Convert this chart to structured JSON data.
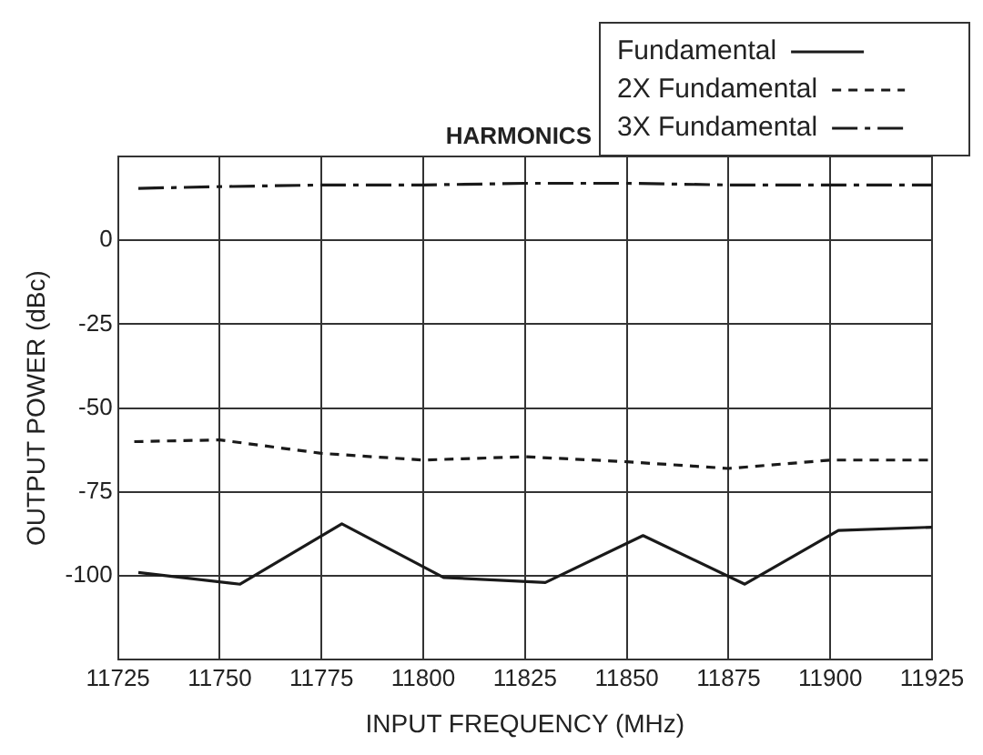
{
  "chart_data": {
    "type": "line",
    "title": "HARMONICS",
    "xlabel": "INPUT FREQUENCY (MHz)",
    "ylabel": "OUTPUT POWER (dBc)",
    "xlim": [
      11725,
      11925
    ],
    "xticks": [
      11725,
      11750,
      11775,
      11800,
      11825,
      11850,
      11875,
      11900,
      11925
    ],
    "ylim": [
      -125,
      25
    ],
    "yticks": [
      {
        "value": -125,
        "label": null
      },
      -100,
      -75,
      -50,
      -25,
      0,
      {
        "value": 25,
        "label": null
      }
    ],
    "grid": true,
    "legend": "top right",
    "marker": "none",
    "series": [
      {
        "name": "Fundamental",
        "color": "#1a1a1a",
        "line_style": "solid",
        "x": [
          11730,
          11755,
          11780,
          11805,
          11830,
          11854,
          11879,
          11902,
          11925
        ],
        "values": [
          -99,
          -102.5,
          -84.5,
          -100.5,
          -102,
          -88,
          -102.5,
          -86.5,
          -85.5
        ]
      },
      {
        "name": "2X Fundamental",
        "color": "#1a1a1a",
        "line_style": "dashed",
        "x": [
          11729,
          11750,
          11775,
          11800,
          11825,
          11850,
          11875,
          11900,
          11925
        ],
        "values": [
          -60,
          -59.5,
          -63.5,
          -65.5,
          -64.5,
          -66,
          -68,
          -65.5,
          -65.5
        ]
      },
      {
        "name": "3X Fundamental",
        "color": "#1a1a1a",
        "line_style": "dashdot",
        "x": [
          11730,
          11750,
          11775,
          11800,
          11825,
          11850,
          11875,
          11900,
          11925
        ],
        "values": [
          15.5,
          16,
          16.5,
          16.5,
          17,
          17,
          16.5,
          16.5,
          16.5
        ]
      }
    ]
  }
}
